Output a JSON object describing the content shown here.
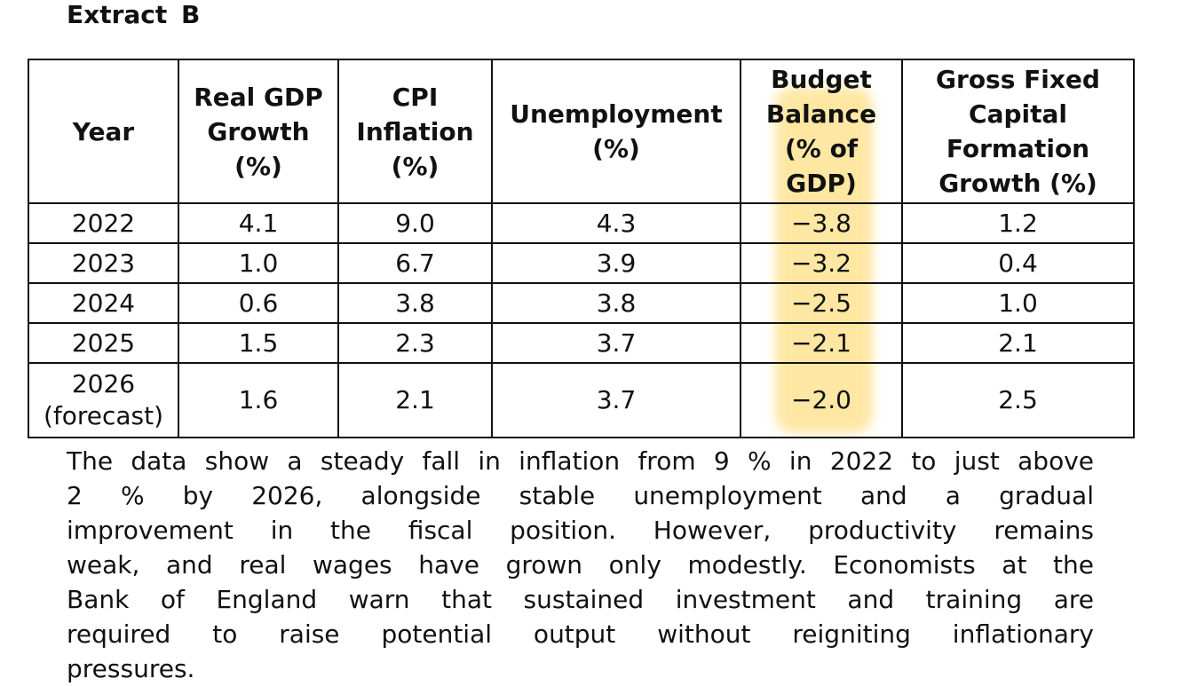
{
  "title": "Extract B",
  "highlight_color": "#fde59a",
  "table": {
    "headers": [
      "Year",
      "Real GDP Growth (%)",
      "CPI Inflation (%)",
      "Unemployment (%)",
      "Budget Balance (% of GDP)",
      "Gross Fixed Capital Formation Growth (%)"
    ],
    "highlighted_column": "Budget Balance (% of GDP)",
    "rows": [
      {
        "year": "2022",
        "year_note": "",
        "gdp": "4.1",
        "cpi": "9.0",
        "unemp": "4.3",
        "budget": "−3.8",
        "gfcf": "1.2"
      },
      {
        "year": "2023",
        "year_note": "",
        "gdp": "1.0",
        "cpi": "6.7",
        "unemp": "3.9",
        "budget": "−3.2",
        "gfcf": "0.4"
      },
      {
        "year": "2024",
        "year_note": "",
        "gdp": "0.6",
        "cpi": "3.8",
        "unemp": "3.8",
        "budget": "−2.5",
        "gfcf": "1.0"
      },
      {
        "year": "2025",
        "year_note": "",
        "gdp": "1.5",
        "cpi": "2.3",
        "unemp": "3.7",
        "budget": "−2.1",
        "gfcf": "2.1"
      },
      {
        "year": "2026",
        "year_note": "(forecast)",
        "gdp": "1.6",
        "cpi": "2.1",
        "unemp": "3.7",
        "budget": "−2.0",
        "gfcf": "2.5"
      }
    ]
  },
  "paragraph_lines": [
    "The data show a steady fall in inflation from 9 % in 2022 to just above",
    "2 % by 2026, alongside stable unemployment and a gradual",
    "improvement in the fiscal position. However, productivity remains",
    "weak, and real wages have grown only modestly. Economists at the",
    "Bank of England warn that sustained investment and training are",
    "required to raise potential output without reigniting inflationary",
    "pressures."
  ]
}
